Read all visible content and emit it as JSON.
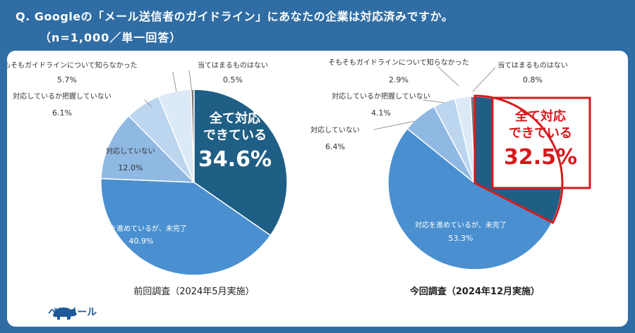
{
  "header": {
    "title": "Q. Googleの「メール送信者のガイドライン」にあなたの企業は対応済みですか。",
    "subtitle": "（n=1,000／単一回答）"
  },
  "logo": {
    "text": "ベアメール",
    "icon": "bear-icon"
  },
  "colors": {
    "background": "#2f6da4",
    "all_done": "#1f5f86",
    "in_progress": "#4a90d0",
    "not_done": "#8fb8e2",
    "unknown": "#bcd6ef",
    "unaware": "#dce9f6",
    "none": "#777777",
    "highlight": "#d7191c"
  },
  "chart_data": [
    {
      "type": "pie",
      "caption": "前回調査（2024年5月実施）",
      "slices": [
        {
          "label": "全て対応できている",
          "value": 34.6,
          "value_text": "34.6%"
        },
        {
          "label": "対応を進めているが、未完了",
          "value": 40.9,
          "value_text": "40.9%"
        },
        {
          "label": "対応していない",
          "value": 12.0,
          "value_text": "12.0%"
        },
        {
          "label": "対応しているか把握していない",
          "value": 6.1,
          "value_text": "6.1%"
        },
        {
          "label": "そもそもガイドラインについて知らなかった",
          "value": 5.7,
          "value_text": "5.7%"
        },
        {
          "label": "当てはまるものはない",
          "value": 0.5,
          "value_text": "0.5%"
        }
      ]
    },
    {
      "type": "pie",
      "caption": "今回調査（2024年12月実施）",
      "slices": [
        {
          "label": "全て対応できている",
          "value": 32.5,
          "value_text": "32.5%"
        },
        {
          "label": "対応を進めているが、未完了",
          "value": 53.3,
          "value_text": "53.3%"
        },
        {
          "label": "対応していない",
          "value": 6.4,
          "value_text": "6.4%"
        },
        {
          "label": "対応しているか把握していない",
          "value": 4.1,
          "value_text": "4.1%"
        },
        {
          "label": "そもそもガイドラインについて知らなかった",
          "value": 2.9,
          "value_text": "2.9%"
        },
        {
          "label": "当てはまるものはない",
          "value": 0.8,
          "value_text": "0.8%"
        }
      ]
    }
  ],
  "big_labels": [
    {
      "line1": "全て対応",
      "line2": "できている",
      "value": "34.6%"
    },
    {
      "line1": "全て対応",
      "line2": "できている",
      "value": "32.5%"
    }
  ]
}
